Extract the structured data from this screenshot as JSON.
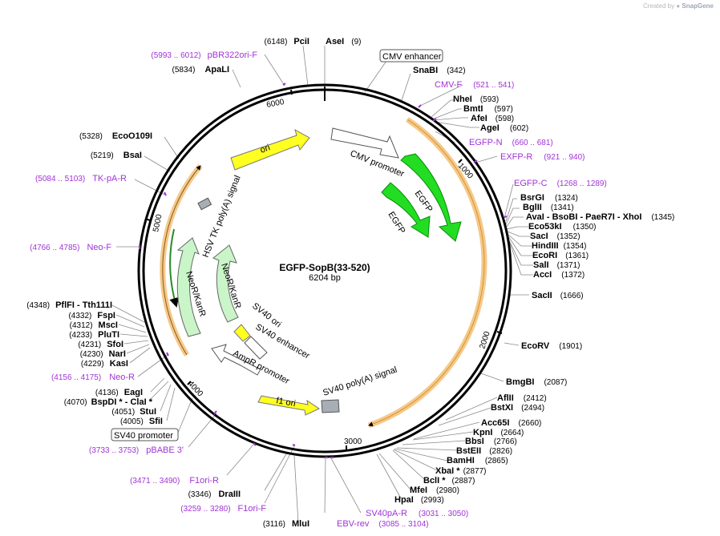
{
  "credit": {
    "prefix": "Created by",
    "brand": "SnapGene"
  },
  "plasmid": {
    "name": "EGFP-SopB(33-520)",
    "size_label": "6204 bp",
    "length": 6204
  },
  "colors": {
    "feature_white": "#ffffff",
    "cds_green": "#22dd22",
    "neo_green": "#c9f5c9",
    "ori_yellow": "#ffff22",
    "polyA_grey": "#a8aeb6",
    "orf_orange": "#e8a035",
    "primer_purple": "#a033d6"
  },
  "ticks": [
    "1000",
    "2000",
    "3000",
    "4000",
    "5000",
    "6000"
  ],
  "sites_right": [
    {
      "name": "AseI",
      "pos": "(9)"
    },
    {
      "name": "SnaBI",
      "pos": "(342)"
    },
    {
      "name": "NheI",
      "pos": "(593)"
    },
    {
      "name": "BmtI",
      "pos": "(597)"
    },
    {
      "name": "AfeI",
      "pos": "(598)"
    },
    {
      "name": "AgeI",
      "pos": "(602)"
    },
    {
      "name": "BsrGI",
      "pos": "(1324)"
    },
    {
      "name": "BglII",
      "pos": "(1341)"
    },
    {
      "name": "AvaI  - BsoBI   - PaeR7I   - XhoI",
      "pos": "(1345)"
    },
    {
      "name": "Eco53kI",
      "pos": "(1350)"
    },
    {
      "name": "SacI",
      "pos": "(1352)"
    },
    {
      "name": "HindIII",
      "pos": "(1354)"
    },
    {
      "name": "EcoRI",
      "pos": "(1361)"
    },
    {
      "name": "SalI",
      "pos": "(1371)"
    },
    {
      "name": "AccI",
      "pos": "(1372)"
    },
    {
      "name": "SacII",
      "pos": "(1666)"
    },
    {
      "name": "EcoRV",
      "pos": "(1901)"
    },
    {
      "name": "BmgBI",
      "pos": "(2087)"
    },
    {
      "name": "AflII",
      "pos": "(2412)"
    },
    {
      "name": "BstXI",
      "pos": "(2494)"
    },
    {
      "name": "Acc65I",
      "pos": "(2660)"
    },
    {
      "name": "KpnI",
      "pos": "(2664)"
    },
    {
      "name": "BbsI",
      "pos": "(2766)"
    },
    {
      "name": "BstEII",
      "pos": "(2826)"
    },
    {
      "name": "BamHI",
      "pos": "(2865)"
    },
    {
      "name": "XbaI *",
      "pos": "(2877)"
    },
    {
      "name": "BclI *",
      "pos": "(2887)"
    },
    {
      "name": "MfeI",
      "pos": "(2980)"
    },
    {
      "name": "HpaI",
      "pos": "(2993)"
    }
  ],
  "sites_left": [
    {
      "name": "PciI",
      "pos": "(6148)"
    },
    {
      "name": "ApaLI",
      "pos": "(5834)"
    },
    {
      "name": "EcoO109I",
      "pos": "(5328)"
    },
    {
      "name": "BsaI",
      "pos": "(5219)"
    },
    {
      "name": "PflFI   - Tth111I",
      "pos": "(4348)"
    },
    {
      "name": "FspI",
      "pos": "(4332)"
    },
    {
      "name": "MscI",
      "pos": "(4312)"
    },
    {
      "name": "PluTI",
      "pos": "(4233)"
    },
    {
      "name": "SfoI",
      "pos": "(4231)"
    },
    {
      "name": "NarI",
      "pos": "(4230)"
    },
    {
      "name": "KasI",
      "pos": "(4229)"
    },
    {
      "name": "EagI",
      "pos": "(4136)"
    },
    {
      "name": "BspDI *  - ClaI *",
      "pos": "(4070)"
    },
    {
      "name": "StuI",
      "pos": "(4051)"
    },
    {
      "name": "SfiI",
      "pos": "(4005)"
    },
    {
      "name": "DraIII",
      "pos": "(3346)"
    },
    {
      "name": "MluI",
      "pos": "(3116)"
    }
  ],
  "primers": [
    {
      "name": "pBR322ori-F",
      "pos": "(5993 .. 6012)"
    },
    {
      "name": "CMV-F",
      "pos": "(521 .. 541)"
    },
    {
      "name": "EGFP-N",
      "pos": "(660 .. 681)"
    },
    {
      "name": "EXFP-R",
      "pos": "(921 .. 940)"
    },
    {
      "name": "EGFP-C",
      "pos": "(1268 .. 1289)"
    },
    {
      "name": "TK-pA-R",
      "pos": "(5084 .. 5103)"
    },
    {
      "name": "Neo-F",
      "pos": "(4766 .. 4785)"
    },
    {
      "name": "Neo-R",
      "pos": "(4156 .. 4175)"
    },
    {
      "name": "pBABE 3'",
      "pos": "(3733 .. 3753)"
    },
    {
      "name": "F1ori-R",
      "pos": "(3471 .. 3490)"
    },
    {
      "name": "F1ori-F",
      "pos": "(3259 .. 3280)"
    },
    {
      "name": "EBV-rev",
      "pos": "(3085 .. 3104)"
    },
    {
      "name": "SV40pA-R",
      "pos": "(3031 .. 3050)"
    }
  ],
  "boxed_labels": [
    "CMV enhancer",
    "SV40 promoter"
  ],
  "features": [
    "CMV promoter",
    "EGFP",
    "EGFP",
    "ori",
    "HSV TK poly(A) signal",
    "NeoR/KanR",
    "NeoR/KanR",
    "SV40 ori",
    "SV40 enhancer",
    "AmpR promoter",
    "f1 ori",
    "SV40 poly(A) signal"
  ]
}
